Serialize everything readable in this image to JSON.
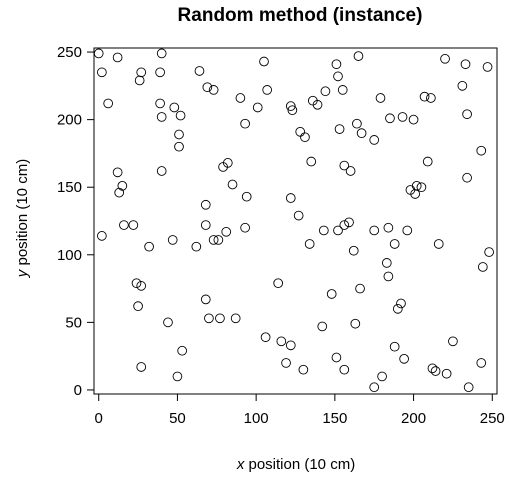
{
  "chart_data": {
    "type": "scatter",
    "title": "Random method (instance)",
    "xlabel": {
      "var": "x",
      "rest": " position (10 cm)"
    },
    "ylabel": {
      "var": "y",
      "rest": " position (10 cm)"
    },
    "xlim": [
      -3,
      253
    ],
    "ylim": [
      -3,
      253
    ],
    "xticks": [
      0,
      50,
      100,
      150,
      200,
      250
    ],
    "yticks": [
      0,
      50,
      100,
      150,
      200,
      250
    ],
    "grid": false,
    "legend": "none",
    "marker": "open-circle",
    "color": "#000000",
    "points": [
      [
        0,
        249
      ],
      [
        2,
        235
      ],
      [
        6,
        212
      ],
      [
        12,
        246
      ],
      [
        22,
        122
      ],
      [
        27,
        235
      ],
      [
        26,
        229
      ],
      [
        40,
        249
      ],
      [
        39,
        235
      ],
      [
        39,
        212
      ],
      [
        40,
        202
      ],
      [
        48,
        209
      ],
      [
        52,
        203
      ],
      [
        51,
        189
      ],
      [
        51,
        180
      ],
      [
        12,
        161
      ],
      [
        15,
        151
      ],
      [
        13,
        146
      ],
      [
        16,
        122
      ],
      [
        2,
        114
      ],
      [
        32,
        106
      ],
      [
        47,
        111
      ],
      [
        64,
        236
      ],
      [
        69,
        224
      ],
      [
        73,
        222
      ],
      [
        90,
        216
      ],
      [
        93,
        197
      ],
      [
        101,
        209
      ],
      [
        105,
        243
      ],
      [
        107,
        222
      ],
      [
        40,
        162
      ],
      [
        79,
        165
      ],
      [
        82,
        168
      ],
      [
        85,
        152
      ],
      [
        94,
        143
      ],
      [
        68,
        137
      ],
      [
        68,
        122
      ],
      [
        73,
        111
      ],
      [
        76,
        111
      ],
      [
        81,
        117
      ],
      [
        62,
        106
      ],
      [
        93,
        120
      ],
      [
        122,
        210
      ],
      [
        123,
        207
      ],
      [
        128,
        191
      ],
      [
        131,
        187
      ],
      [
        136,
        214
      ],
      [
        139,
        211
      ],
      [
        144,
        221
      ],
      [
        151,
        241
      ],
      [
        152,
        232
      ],
      [
        155,
        222
      ],
      [
        165,
        247
      ],
      [
        153,
        193
      ],
      [
        164,
        197
      ],
      [
        167,
        190
      ],
      [
        175,
        185
      ],
      [
        179,
        216
      ],
      [
        185,
        201
      ],
      [
        193,
        202
      ],
      [
        200,
        200
      ],
      [
        207,
        217
      ],
      [
        211,
        216
      ],
      [
        122,
        142
      ],
      [
        127,
        129
      ],
      [
        134,
        108
      ],
      [
        135,
        169
      ],
      [
        156,
        166
      ],
      [
        160,
        162
      ],
      [
        143,
        118
      ],
      [
        152,
        118
      ],
      [
        156,
        122
      ],
      [
        159,
        124
      ],
      [
        162,
        103
      ],
      [
        175,
        118
      ],
      [
        183,
        94
      ],
      [
        184,
        120
      ],
      [
        188,
        108
      ],
      [
        196,
        118
      ],
      [
        198,
        148
      ],
      [
        201,
        145
      ],
      [
        205,
        150
      ],
      [
        202,
        151
      ],
      [
        209,
        169
      ],
      [
        216,
        108
      ],
      [
        220,
        245
      ],
      [
        231,
        225
      ],
      [
        234,
        204
      ],
      [
        233,
        241
      ],
      [
        243,
        177
      ],
      [
        247,
        239
      ],
      [
        248,
        102
      ],
      [
        244,
        91
      ],
      [
        234,
        157
      ],
      [
        24,
        79
      ],
      [
        27,
        77
      ],
      [
        25,
        62
      ],
      [
        27,
        17
      ],
      [
        44,
        50
      ],
      [
        53,
        29
      ],
      [
        50,
        10
      ],
      [
        68,
        67
      ],
      [
        70,
        53
      ],
      [
        77,
        53
      ],
      [
        87,
        53
      ],
      [
        106,
        39
      ],
      [
        114,
        79
      ],
      [
        116,
        36
      ],
      [
        119,
        20
      ],
      [
        122,
        33
      ],
      [
        130,
        15
      ],
      [
        142,
        47
      ],
      [
        148,
        71
      ],
      [
        151,
        24
      ],
      [
        156,
        15
      ],
      [
        163,
        49
      ],
      [
        166,
        75
      ],
      [
        175,
        2
      ],
      [
        180,
        10
      ],
      [
        184,
        84
      ],
      [
        188,
        32
      ],
      [
        190,
        60
      ],
      [
        192,
        64
      ],
      [
        194,
        23
      ],
      [
        212,
        16
      ],
      [
        214,
        14
      ],
      [
        221,
        12
      ],
      [
        225,
        36
      ],
      [
        235,
        2
      ],
      [
        243,
        20
      ]
    ]
  }
}
